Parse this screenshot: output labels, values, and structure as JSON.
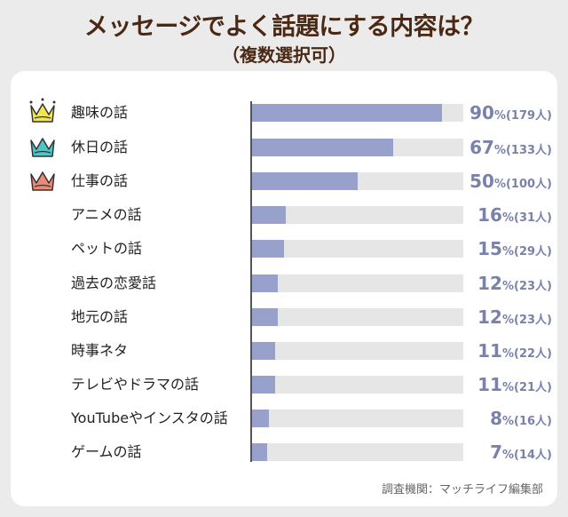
{
  "colors": {
    "bar": "#98a0cc",
    "track": "#e6e6e6",
    "title": "#4a2813",
    "value": "#7a82aa",
    "crowns": [
      "#f2e74a",
      "#4cc6c6",
      "#ec8a77"
    ]
  },
  "chart_data": {
    "type": "bar",
    "orientation": "horizontal",
    "title": "メッセージでよく話題にする内容は？",
    "subtitle": "（複数選択可）",
    "xlim": [
      0,
      100
    ],
    "categories": [
      "趣味の話",
      "休日の話",
      "仕事の話",
      "アニメの話",
      "ペットの話",
      "過去の恋愛話",
      "地元の話",
      "時事ネタ",
      "テレビやドラマの話",
      "YouTubeやインスタの話",
      "ゲームの話"
    ],
    "values": [
      90,
      67,
      50,
      16,
      15,
      12,
      12,
      11,
      11,
      8,
      7
    ],
    "counts": [
      "(179人)",
      "(133人)",
      "(100人)",
      "(31人)",
      "(29人)",
      "(23人)",
      "(23人)",
      "(22人)",
      "(21人)",
      "(16人)",
      "(14人)"
    ],
    "percent_sign": "%",
    "ranked_icons": [
      "crown-icon",
      "crown-icon",
      "crown-icon"
    ],
    "source": "調査機関：マッチライフ編集部"
  }
}
